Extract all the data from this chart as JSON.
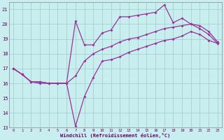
{
  "xlabel": "Windchill (Refroidissement éolien,°C)",
  "x": [
    0,
    1,
    2,
    3,
    4,
    5,
    6,
    7,
    8,
    9,
    10,
    11,
    12,
    13,
    14,
    15,
    16,
    17,
    18,
    19,
    20,
    21,
    22,
    23
  ],
  "line_max": [
    17.0,
    16.6,
    16.1,
    16.1,
    16.0,
    16.0,
    16.0,
    20.2,
    18.6,
    18.6,
    19.4,
    19.6,
    20.5,
    20.5,
    20.6,
    20.7,
    20.8,
    21.3,
    20.1,
    20.4,
    20.0,
    19.9,
    19.5,
    18.8
  ],
  "line_mean": [
    17.0,
    16.6,
    16.1,
    16.1,
    16.0,
    16.0,
    16.0,
    16.5,
    17.5,
    18.0,
    18.3,
    18.5,
    18.8,
    19.0,
    19.1,
    19.3,
    19.5,
    19.7,
    19.8,
    19.9,
    20.0,
    19.7,
    19.3,
    18.7
  ],
  "line_min": [
    17.0,
    16.6,
    16.1,
    16.0,
    16.0,
    16.0,
    16.0,
    13.1,
    15.1,
    16.4,
    17.5,
    17.6,
    17.8,
    18.1,
    18.3,
    18.5,
    18.7,
    18.9,
    19.0,
    19.2,
    19.5,
    19.3,
    18.9,
    18.7
  ],
  "ylim_min": 13,
  "ylim_max": 21.5,
  "yticks": [
    13,
    14,
    15,
    16,
    17,
    18,
    19,
    20,
    21
  ],
  "xticks": [
    0,
    1,
    2,
    3,
    4,
    5,
    6,
    7,
    8,
    9,
    10,
    11,
    12,
    13,
    14,
    15,
    16,
    17,
    18,
    19,
    20,
    21,
    22,
    23
  ],
  "line_color": "#993399",
  "bg_color": "#c8eef0",
  "grid_color": "#a0ccc8",
  "axis_color": "#660066",
  "tick_color": "#660066"
}
